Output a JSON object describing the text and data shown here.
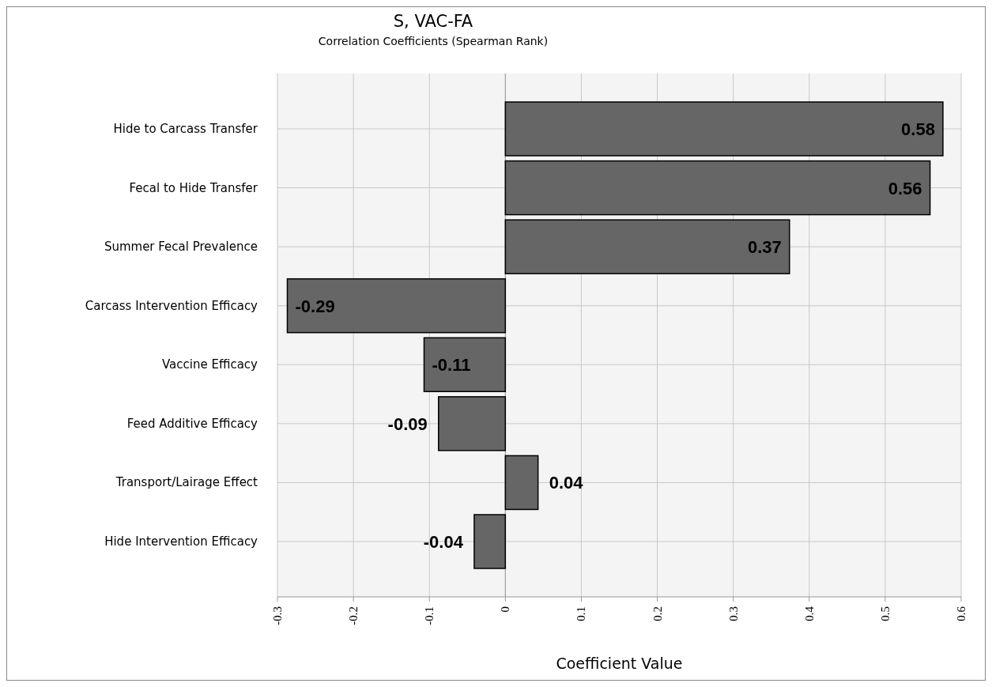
{
  "chart_data": {
    "type": "bar",
    "orientation": "horizontal",
    "title": "S, VAC-FA",
    "subtitle": "Correlation Coefficients (Spearman Rank)",
    "xlabel": "Coefficient Value",
    "categories": [
      "Hide to Carcass Transfer",
      "Fecal to Hide Transfer",
      "Summer Fecal Prevalence",
      "Carcass Intervention Efficacy",
      "Vaccine Efficacy",
      "Feed Additive Efficacy",
      "Transport/Lairage Effect",
      "Hide Intervention Efficacy"
    ],
    "values": [
      0.576,
      0.559,
      0.374,
      -0.287,
      -0.107,
      -0.088,
      0.043,
      -0.041
    ],
    "value_labels": [
      "0.58",
      "0.56",
      "0.37",
      "-0.29",
      "-0.11",
      "-0.09",
      "0.04",
      "-0.04"
    ],
    "color": "#666666",
    "xlim": [
      -0.3,
      0.6
    ],
    "xticks": [
      -0.3,
      -0.2,
      -0.1,
      0,
      0.1,
      0.2,
      0.3,
      0.4,
      0.5,
      0.6
    ],
    "grid": true
  }
}
